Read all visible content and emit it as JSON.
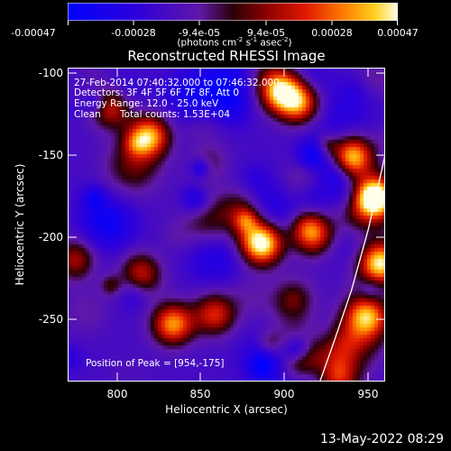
{
  "chart_data": {
    "type": "heatmap",
    "title": "Reconstructed RHESSI Image",
    "xlabel": "Heliocentric X (arcsec)",
    "ylabel": "Heliocentric Y (arcsec)",
    "xlim": [
      770,
      960
    ],
    "ylim": [
      -288,
      -97
    ],
    "xticks": [
      "800",
      "850",
      "900",
      "950"
    ],
    "yticks": [
      "-100",
      "-150",
      "-200",
      "-250"
    ],
    "colorbar": {
      "ticks": [
        "-0.00047",
        "-0.00028",
        "-9.4e-05",
        "9.4e-05",
        "0.00028",
        "0.00047"
      ],
      "range": [
        -0.00047,
        0.00047
      ],
      "units": "(photons cm",
      "units_exp1": "-2",
      "units_mid": " s",
      "units_exp2": "-1",
      "units_end": " asec",
      "units_exp3": "-2",
      "units_close": ")"
    },
    "annotations": {
      "time": "27-Feb-2014 07:40:32.000 to 07:46:32.000",
      "detectors": "Detectors: 3F 4F 5F 6F 7F 8F, Att 0",
      "energy": "Energy Range: 12.0 - 25.0 keV",
      "algo": "Clean",
      "counts": "Total counts: 1.53E+04",
      "peak": "Position of Peak = [954,-175]"
    },
    "limb_curve": [
      [
        921,
        -288
      ],
      [
        930,
        -262
      ],
      [
        940,
        -232
      ],
      [
        950,
        -195
      ],
      [
        960,
        -150
      ]
    ],
    "sources": [
      {
        "x": 885,
        "y": -203,
        "intensity": 1.0
      },
      {
        "x": 953,
        "y": -175,
        "intensity": 1.0
      },
      {
        "x": 818,
        "y": -138,
        "intensity": 0.9
      },
      {
        "x": 896,
        "y": -111,
        "intensity": 0.75
      },
      {
        "x": 908,
        "y": -118,
        "intensity": 0.75
      },
      {
        "x": 940,
        "y": -150,
        "intensity": 0.8
      },
      {
        "x": 956,
        "y": -215,
        "intensity": 0.9
      },
      {
        "x": 947,
        "y": -248,
        "intensity": 0.85
      },
      {
        "x": 915,
        "y": -196,
        "intensity": 0.7
      },
      {
        "x": 832,
        "y": -252,
        "intensity": 0.75
      },
      {
        "x": 812,
        "y": -222,
        "intensity": 0.6
      },
      {
        "x": 775,
        "y": -213,
        "intensity": 0.6
      },
      {
        "x": 795,
        "y": -120,
        "intensity": 0.55
      },
      {
        "x": 857,
        "y": -246,
        "intensity": 0.55
      },
      {
        "x": 908,
        "y": -270,
        "intensity": 0.65
      },
      {
        "x": 930,
        "y": -286,
        "intensity": 0.6
      }
    ]
  },
  "footer": {
    "date": "13-May-2022 08:29"
  }
}
